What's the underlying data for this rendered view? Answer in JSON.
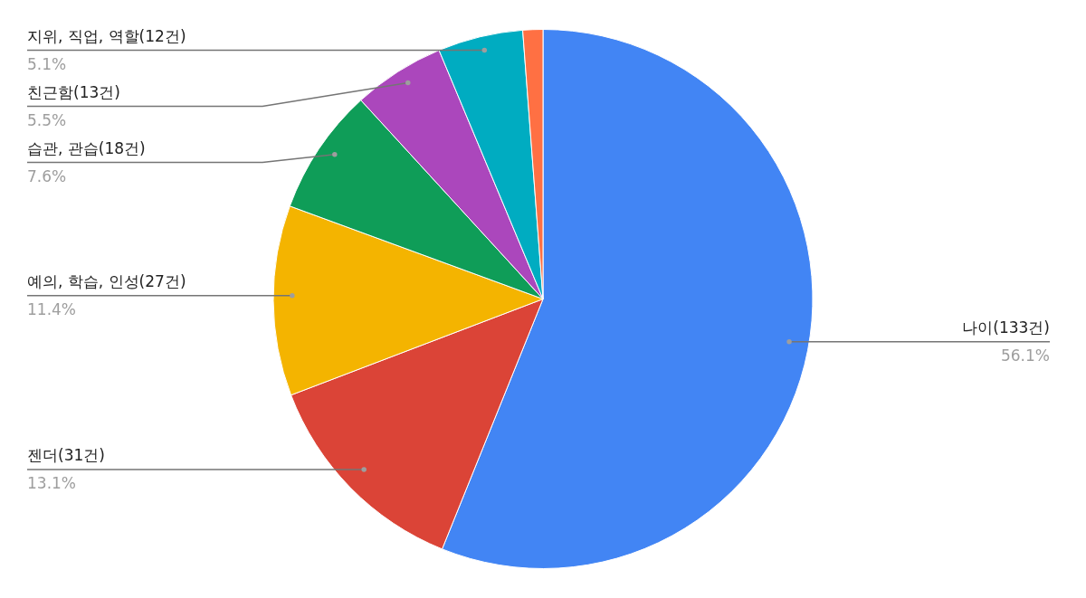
{
  "chart_data": {
    "type": "pie",
    "categories": [
      "나이(133건)",
      "젠더(31건)",
      "예의, 학습, 인성(27건)",
      "습관, 관습(18건)",
      "친근함(13건)",
      "지위, 직업, 역할(12건)",
      null
    ],
    "values": [
      56.1,
      13.1,
      11.4,
      7.6,
      5.5,
      5.1,
      1.2
    ],
    "colors": [
      "#4285f4",
      "#db4437",
      "#f4b400",
      "#0f9d58",
      "#ab47bc",
      "#00acc1",
      "#ff7043"
    ],
    "value_labels": [
      "56.1%",
      "13.1%",
      "11.4%",
      "7.6%",
      "5.5%",
      "5.1%",
      null
    ]
  }
}
